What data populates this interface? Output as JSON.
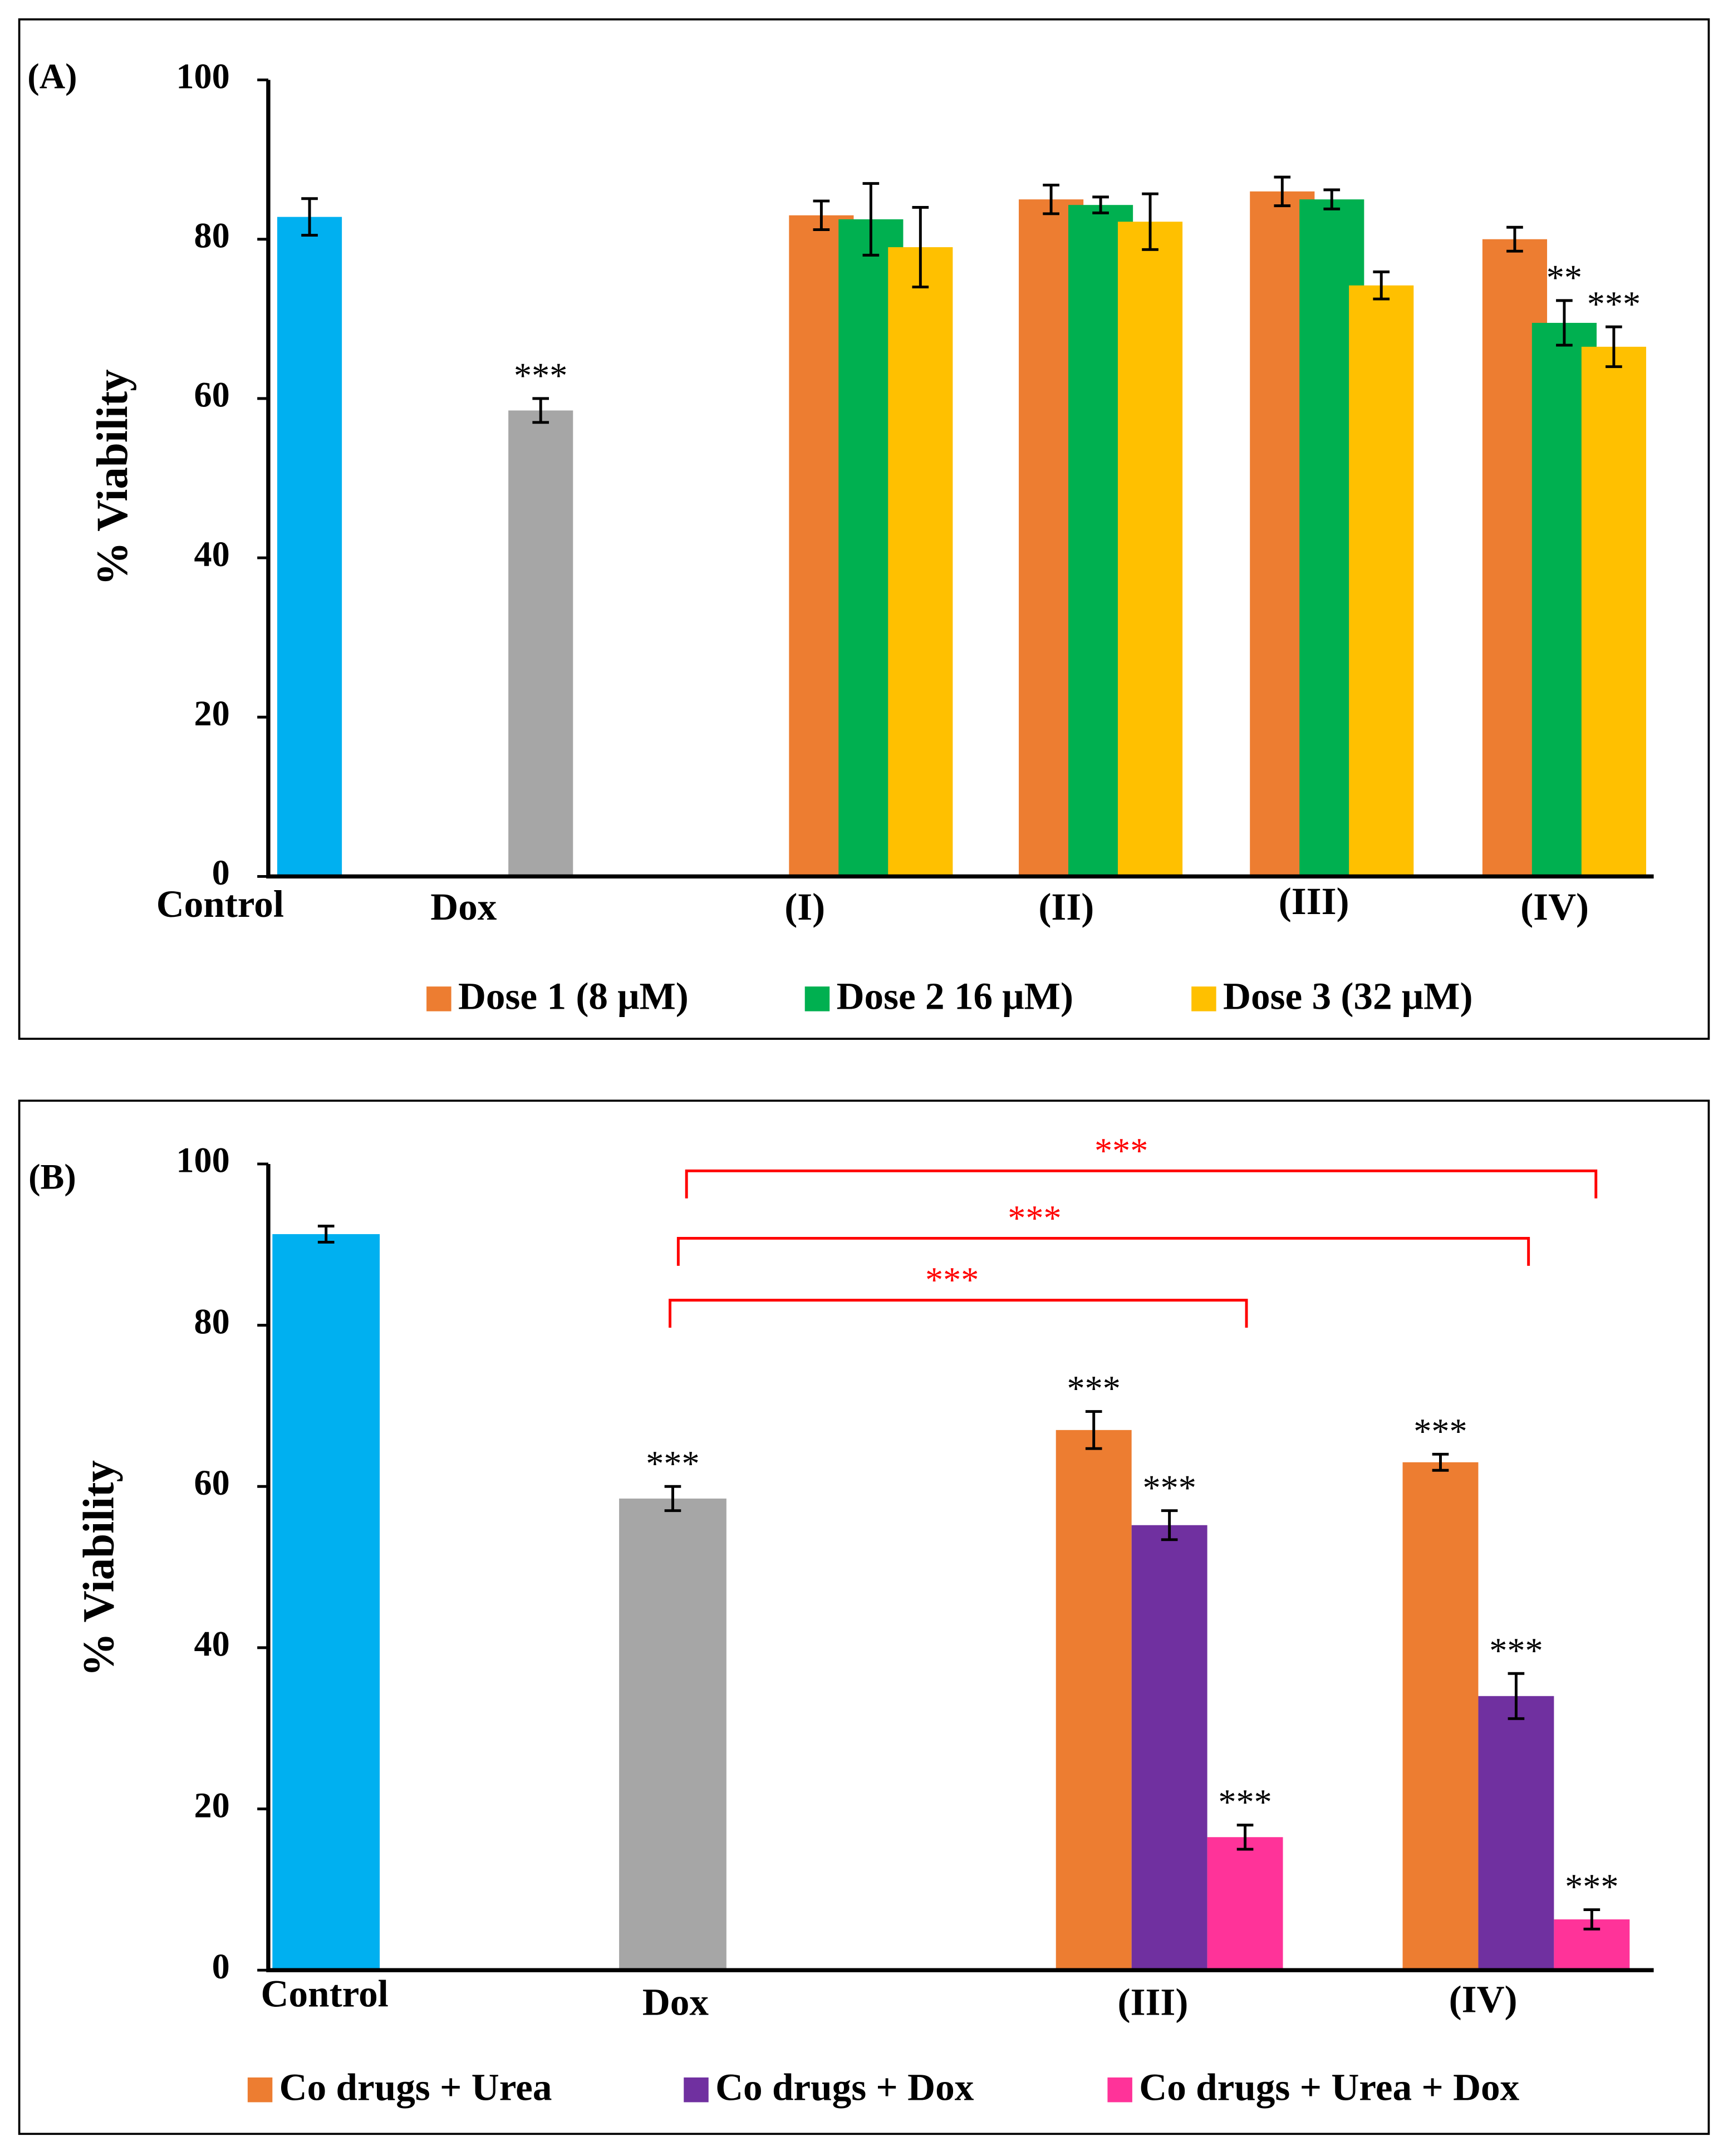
{
  "chart_data": [
    {
      "type": "bar",
      "title": "(A)",
      "ylabel": "% Viability",
      "categories": [
        "Control",
        "Dox",
        "(I)",
        "(II)",
        "(III)",
        "(IV)"
      ],
      "ylim": [
        0,
        100
      ],
      "yticks": [
        0,
        20,
        40,
        60,
        80,
        100
      ],
      "series": [
        {
          "color": "#00b0f0",
          "values": [
            82.8,
            null,
            null,
            null,
            null,
            null
          ],
          "errors": [
            2.3,
            null,
            null,
            null,
            null,
            null
          ]
        },
        {
          "color": "#a6a6a6",
          "values": [
            null,
            58.5,
            null,
            null,
            null,
            null
          ],
          "errors": [
            null,
            1.5,
            null,
            null,
            null,
            null
          ],
          "value_labels": [
            null,
            "***",
            null,
            null,
            null,
            null
          ]
        },
        {
          "name": "Dose 1 (8 μM)",
          "color": "#ed7d31",
          "values": [
            null,
            null,
            83,
            85,
            86,
            80
          ],
          "errors": [
            null,
            null,
            1.8,
            1.8,
            1.8,
            1.5
          ]
        },
        {
          "name": "Dose 2 16 μM)",
          "color": "#00b050",
          "values": [
            null,
            null,
            82.5,
            84.3,
            85,
            69.5
          ],
          "errors": [
            null,
            null,
            4.5,
            1,
            1.2,
            2.8
          ],
          "value_labels": [
            null,
            null,
            null,
            null,
            null,
            "**"
          ]
        },
        {
          "name": "Dose 3 (32 μM)",
          "color": "#ffc000",
          "values": [
            null,
            null,
            79,
            82.2,
            74.2,
            66.5
          ],
          "errors": [
            null,
            null,
            5,
            3.5,
            1.7,
            2.5
          ],
          "value_labels": [
            null,
            null,
            null,
            null,
            null,
            "***"
          ]
        }
      ]
    },
    {
      "type": "bar",
      "title": "(B)",
      "ylabel": "% Viability",
      "categories": [
        "Control",
        "Dox",
        "(III)",
        "(IV)"
      ],
      "ylim": [
        0,
        100
      ],
      "yticks": [
        0,
        20,
        40,
        60,
        80,
        100
      ],
      "series": [
        {
          "color": "#00b0f0",
          "values": [
            91.3,
            null,
            null,
            null
          ],
          "errors": [
            1,
            null,
            null,
            null
          ]
        },
        {
          "color": "#a6a6a6",
          "values": [
            null,
            58.5,
            null,
            null
          ],
          "errors": [
            null,
            1.5,
            null,
            null
          ],
          "value_labels": [
            null,
            "***",
            null,
            null
          ]
        },
        {
          "name": "Co drugs + Urea",
          "color": "#ed7d31",
          "values": [
            null,
            null,
            67,
            63
          ],
          "errors": [
            null,
            null,
            2.3,
            1
          ],
          "value_labels": [
            null,
            null,
            "***",
            "***"
          ]
        },
        {
          "name": "Co drugs + Dox",
          "color": "#7030a0",
          "values": [
            null,
            null,
            55.2,
            34
          ],
          "errors": [
            null,
            null,
            1.8,
            2.8
          ],
          "value_labels": [
            null,
            null,
            "***",
            "***"
          ]
        },
        {
          "name": "Co drugs + Urea + Dox",
          "color": "#ff3399",
          "values": [
            null,
            null,
            16.5,
            6.3
          ],
          "errors": [
            null,
            null,
            1.5,
            1.2
          ],
          "value_labels": [
            null,
            null,
            "***",
            "***"
          ]
        }
      ],
      "annotations": [
        "***",
        "***",
        "***"
      ]
    }
  ]
}
